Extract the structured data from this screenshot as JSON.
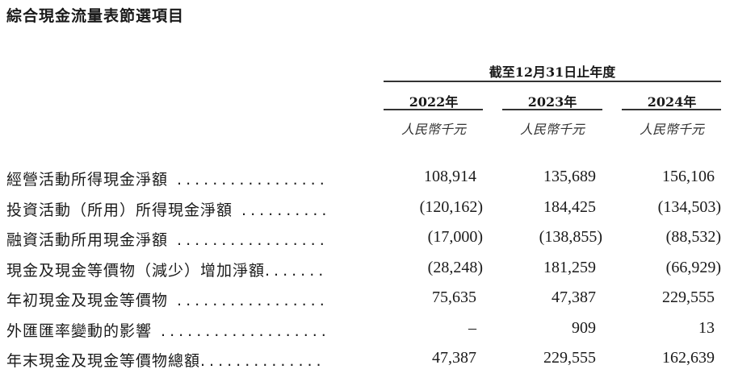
{
  "title": "綜合現金流量表節選項目",
  "period_header": "截至12月31日止年度",
  "columns": [
    {
      "year": "2022年",
      "unit": "人民幣千元"
    },
    {
      "year": "2023年",
      "unit": "人民幣千元"
    },
    {
      "year": "2024年",
      "unit": "人民幣千元"
    }
  ],
  "rows": [
    {
      "label": "經營活動所得現金淨額",
      "leader": " .................",
      "values": [
        "108,914",
        "135,689",
        "156,106"
      ]
    },
    {
      "label": "投資活動（所用）所得現金淨額",
      "leader": " ..........",
      "values": [
        "(120,162)",
        "184,425",
        "(134,503)"
      ]
    },
    {
      "label": "融資活動所用現金淨額",
      "leader": " .................",
      "values": [
        "(17,000)",
        "(138,855)",
        "(88,532)"
      ]
    },
    {
      "label": "現金及現金等價物（減少）增加淨額",
      "leader": ".......",
      "values": [
        "(28,248)",
        "181,259",
        "(66,929)"
      ]
    },
    {
      "label": "年初現金及現金等價物",
      "leader": " .................",
      "values": [
        "75,635",
        "47,387",
        "229,555"
      ]
    },
    {
      "label": "外匯匯率變動的影響",
      "leader": " ...................",
      "values": [
        "–",
        "909",
        "13"
      ]
    },
    {
      "label": "年末現金及現金等價物總額",
      "leader": "..............",
      "values": [
        "47,387",
        "229,555",
        "162,639"
      ]
    }
  ]
}
